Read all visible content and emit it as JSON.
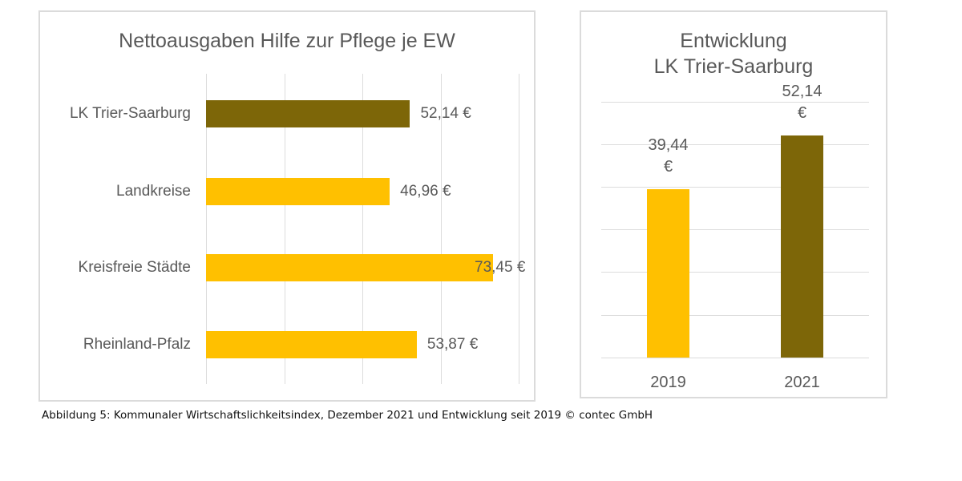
{
  "caption": "Abbildung 5: Kommunaler Wirtschaftslichkeitsindex, Dezember 2021 und Entwicklung seit 2019 © contec GmbH",
  "colors": {
    "gold": "#FFC000",
    "dark_gold": "#7D6608",
    "chart_text": "#595959",
    "gridline": "#DCDCDC",
    "panel_border": "#DBDBDB",
    "caption_text": "#111111"
  },
  "chart_data": [
    {
      "type": "bar",
      "orientation": "horizontal",
      "title": "Nettoausgaben Hilfe zur Pflege je EW",
      "categories": [
        "LK Trier-Saarburg",
        "Landkreise",
        "Kreisfreie Städte",
        "Rheinland-Pfalz"
      ],
      "values": [
        52.14,
        46.96,
        73.45,
        53.87
      ],
      "value_labels": [
        "52,14 €",
        "46,96 €",
        "73,45 €",
        "53,87 €"
      ],
      "bar_colors": [
        "#7D6608",
        "#FFC000",
        "#FFC000",
        "#FFC000"
      ],
      "xlabel": "",
      "ylabel": "",
      "xlim": [
        0,
        80
      ],
      "grid_step": 20,
      "grid": true,
      "legend": false,
      "value_axis_tick_labels_visible": false,
      "data_label_position": "outside-end"
    },
    {
      "type": "bar",
      "orientation": "vertical",
      "title": "Entwicklung LK Trier-Saarburg",
      "title_lines": [
        "Entwicklung",
        "LK Trier-Saarburg"
      ],
      "categories": [
        "2019",
        "2021"
      ],
      "values": [
        39.44,
        52.14
      ],
      "value_labels": [
        [
          "39,44",
          "€"
        ],
        [
          "52,14",
          "€"
        ]
      ],
      "bar_colors": [
        "#FFC000",
        "#7D6608"
      ],
      "xlabel": "",
      "ylabel": "",
      "ylim": [
        0,
        60
      ],
      "grid_step": 10,
      "grid": true,
      "legend": false,
      "value_axis_tick_labels_visible": false,
      "data_label_position": "outside-end"
    }
  ]
}
